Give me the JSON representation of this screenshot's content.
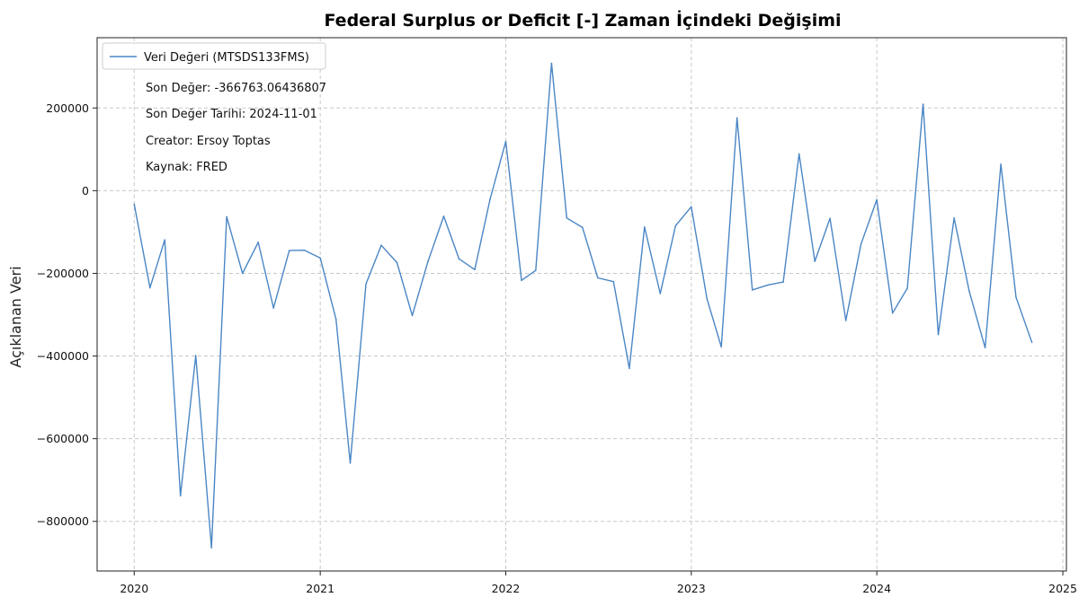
{
  "chart_data": {
    "type": "line",
    "title": "Federal Surplus or Deficit [-] Zaman İçindeki Değişimi",
    "xlabel": "",
    "ylabel": "Açıklanan Veri",
    "x_ticks": [
      "2020",
      "2021",
      "2022",
      "2023",
      "2024",
      "2025"
    ],
    "y_ticks": [
      {
        "value": 200000,
        "label": "200000"
      },
      {
        "value": 0,
        "label": "0"
      },
      {
        "value": -200000,
        "label": "−200000"
      },
      {
        "value": -400000,
        "label": "−400000"
      },
      {
        "value": -600000,
        "label": "−600000"
      },
      {
        "value": -800000,
        "label": "−800000"
      }
    ],
    "xlim": [
      "2019-10-20",
      "2025-01-08"
    ],
    "ylim": [
      -920000,
      370000
    ],
    "grid": true,
    "line_color": "#4a86c5",
    "legend": {
      "position": "top-left",
      "entry": "Veri Değeri (MTSDS133FMS)",
      "notes": [
        "Son Değer: -366763.06436807",
        "Son Değer Tarihi: 2024-11-01",
        "Creator: Ersoy Toptas",
        "Kaynak: FRED"
      ]
    },
    "series": [
      {
        "name": "Veri Değeri (MTSDS133FMS)",
        "x": [
          "2020-01-01",
          "2020-02-01",
          "2020-03-01",
          "2020-04-01",
          "2020-05-01",
          "2020-06-01",
          "2020-07-01",
          "2020-08-01",
          "2020-09-01",
          "2020-10-01",
          "2020-11-01",
          "2020-12-01",
          "2021-01-01",
          "2021-02-01",
          "2021-03-01",
          "2021-04-01",
          "2021-05-01",
          "2021-06-01",
          "2021-07-01",
          "2021-08-01",
          "2021-09-01",
          "2021-10-01",
          "2021-11-01",
          "2021-12-01",
          "2022-01-01",
          "2022-02-01",
          "2022-03-01",
          "2022-04-01",
          "2022-05-01",
          "2022-06-01",
          "2022-07-01",
          "2022-08-01",
          "2022-09-01",
          "2022-10-01",
          "2022-11-01",
          "2022-12-01",
          "2023-01-01",
          "2023-02-01",
          "2023-03-01",
          "2023-04-01",
          "2023-05-01",
          "2023-06-01",
          "2023-07-01",
          "2023-08-01",
          "2023-09-01",
          "2023-10-01",
          "2023-11-01",
          "2023-12-01",
          "2024-01-01",
          "2024-02-01",
          "2024-03-01",
          "2024-04-01",
          "2024-05-01",
          "2024-06-01",
          "2024-07-01",
          "2024-08-01",
          "2024-09-01",
          "2024-10-01",
          "2024-11-01"
        ],
        "values": [
          -33000,
          -235000,
          -119000,
          -738000,
          -399000,
          -864000,
          -63000,
          -200000,
          -125000,
          -284000,
          -145000,
          -144000,
          -163000,
          -311000,
          -659000,
          -226000,
          -132000,
          -174000,
          -302000,
          -171000,
          -62000,
          -165000,
          -191000,
          -21000,
          119000,
          -217000,
          -193000,
          308000,
          -66000,
          -89000,
          -211000,
          -220000,
          -430000,
          -88000,
          -249000,
          -85000,
          -39000,
          -262000,
          -378000,
          176000,
          -240000,
          -228000,
          -221000,
          89000,
          -171000,
          -67000,
          -314000,
          -129000,
          -22000,
          -296000,
          -236000,
          209000,
          -348000,
          -66000,
          -244000,
          -380000,
          64000,
          -258000,
          -366763
        ]
      }
    ]
  }
}
